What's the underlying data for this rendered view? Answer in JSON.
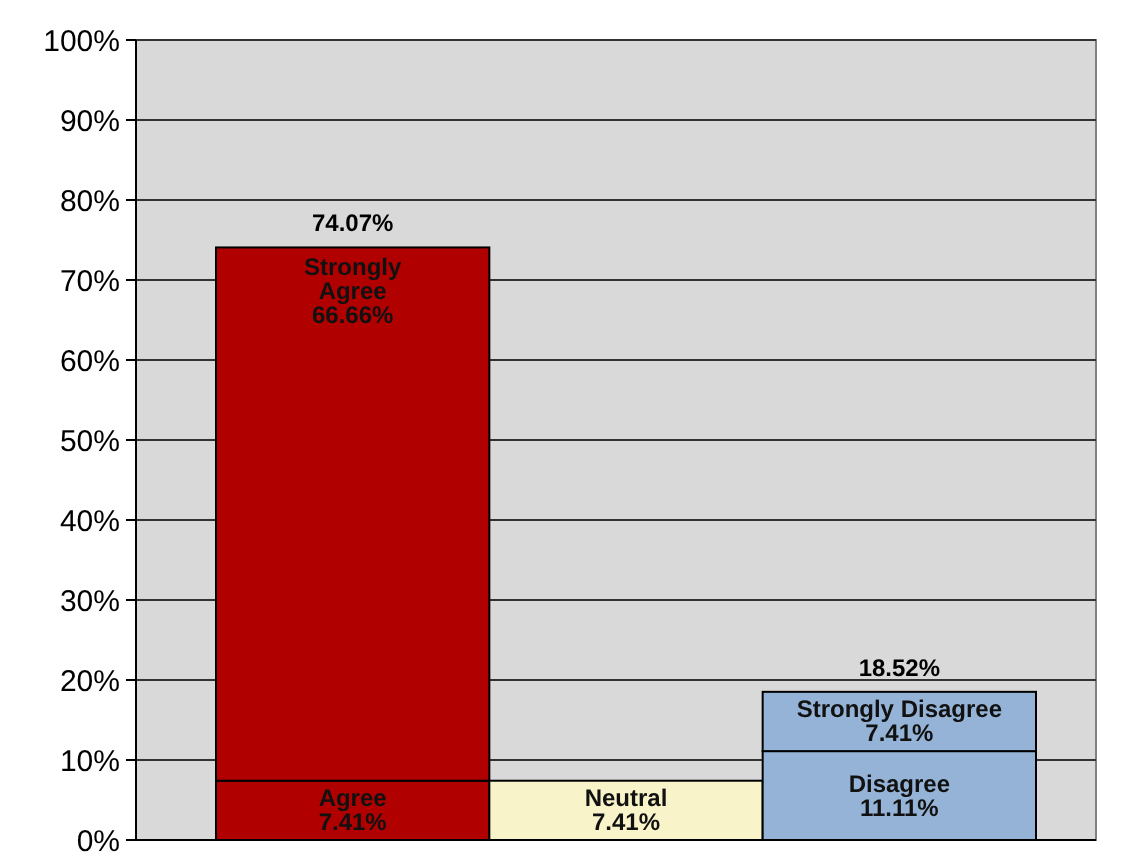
{
  "chart_data": {
    "type": "bar",
    "stacked": true,
    "categories": [
      null,
      null,
      null
    ],
    "series": [
      {
        "name": "Agree",
        "color": "#b00000",
        "values": [
          7.41,
          null,
          null
        ],
        "value_labels": [
          "7.41%",
          null,
          null
        ]
      },
      {
        "name": "Strongly Agree",
        "color": "#b00000",
        "values": [
          66.66,
          null,
          null
        ],
        "value_labels": [
          "66.66%",
          null,
          null
        ]
      },
      {
        "name": "Neutral",
        "color": "#f8f3c8",
        "values": [
          null,
          7.41,
          null
        ],
        "value_labels": [
          null,
          "7.41%",
          null
        ]
      },
      {
        "name": "Disagree",
        "color": "#95b3d7",
        "values": [
          null,
          null,
          11.11
        ],
        "value_labels": [
          null,
          null,
          "11.11%"
        ]
      },
      {
        "name": "Strongly Disagree",
        "color": "#95b3d7",
        "values": [
          null,
          null,
          7.41
        ],
        "value_labels": [
          null,
          null,
          "7.41%"
        ]
      }
    ],
    "totals": [
      "74.07%",
      null,
      "18.52%"
    ],
    "ylim": [
      0,
      100
    ],
    "yticks": [
      {
        "value": 0,
        "label": "0%"
      },
      {
        "value": 10,
        "label": "10%"
      },
      {
        "value": 20,
        "label": "20%"
      },
      {
        "value": 30,
        "label": "30%"
      },
      {
        "value": 40,
        "label": "40%"
      },
      {
        "value": 50,
        "label": "50%"
      },
      {
        "value": 60,
        "label": "60%"
      },
      {
        "value": 70,
        "label": "70%"
      },
      {
        "value": 80,
        "label": "80%"
      },
      {
        "value": 90,
        "label": "90%"
      },
      {
        "value": 100,
        "label": "100%"
      }
    ],
    "grid": "y"
  }
}
